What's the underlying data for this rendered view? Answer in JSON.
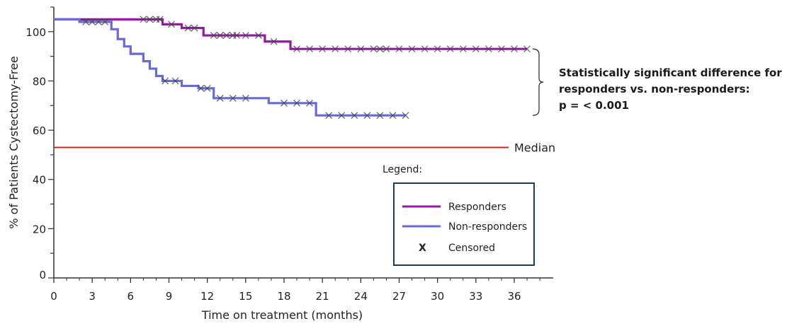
{
  "chart_data": {
    "type": "line",
    "xlabel": "Time on treatment (months)",
    "ylabel": "% of Patients Cystectomy-Free",
    "xlim": [
      0,
      38
    ],
    "ylim": [
      0,
      110
    ],
    "x_ticks": [
      0,
      3,
      6,
      9,
      12,
      15,
      18,
      21,
      24,
      27,
      30,
      33,
      36
    ],
    "y_ticks": [
      0,
      20,
      40,
      60,
      80,
      100
    ],
    "grid": false,
    "series": [
      {
        "name": "Responders",
        "color": "#8e1e9e",
        "steps": [
          [
            0,
            105
          ],
          [
            8.5,
            103
          ],
          [
            10,
            101.5
          ],
          [
            11.7,
            98.5
          ],
          [
            16.5,
            96
          ],
          [
            18.5,
            93
          ],
          [
            37,
            93
          ]
        ],
        "censored": [
          7,
          7.5,
          8,
          8.3,
          9.2,
          10.5,
          11,
          12.5,
          13,
          13.5,
          14,
          14.3,
          15,
          16,
          17.2,
          19,
          20,
          21,
          22,
          23,
          24,
          25,
          25.5,
          26,
          27,
          28,
          29,
          30,
          31,
          32,
          33,
          34,
          35,
          36,
          37
        ]
      },
      {
        "name": "Non-responders",
        "color": "#6a6ad6",
        "steps": [
          [
            0,
            105
          ],
          [
            2,
            104
          ],
          [
            4.5,
            101
          ],
          [
            5,
            97
          ],
          [
            5.5,
            94
          ],
          [
            6,
            91
          ],
          [
            7,
            88
          ],
          [
            7.5,
            85
          ],
          [
            8,
            82
          ],
          [
            8.5,
            80
          ],
          [
            10,
            78
          ],
          [
            11.3,
            77
          ],
          [
            12.5,
            73
          ],
          [
            16.8,
            71
          ],
          [
            20.5,
            66
          ],
          [
            27.5,
            66
          ]
        ],
        "censored": [
          2.5,
          3,
          3.5,
          4,
          8.7,
          9.5,
          11.5,
          12,
          13,
          14,
          15,
          18,
          19,
          20,
          21.5,
          22.5,
          23.5,
          24.5,
          25.5,
          26.5,
          27.5
        ]
      }
    ],
    "median_line": {
      "y": 53,
      "color": "#c8281e",
      "label": "Median"
    },
    "legend": {
      "title": "Legend:",
      "placement": "bottom-right",
      "entries": [
        {
          "label": "Responders",
          "color": "#8e1e9e",
          "kind": "line"
        },
        {
          "label": "Non-responders",
          "color": "#6a6ad6",
          "kind": "line"
        },
        {
          "label": "Censored",
          "symbol": "X",
          "kind": "marker"
        }
      ]
    },
    "annotation": {
      "lines": [
        "Statistically significant difference for",
        "responders vs. non-responders:",
        "p = < 0.001"
      ]
    }
  }
}
